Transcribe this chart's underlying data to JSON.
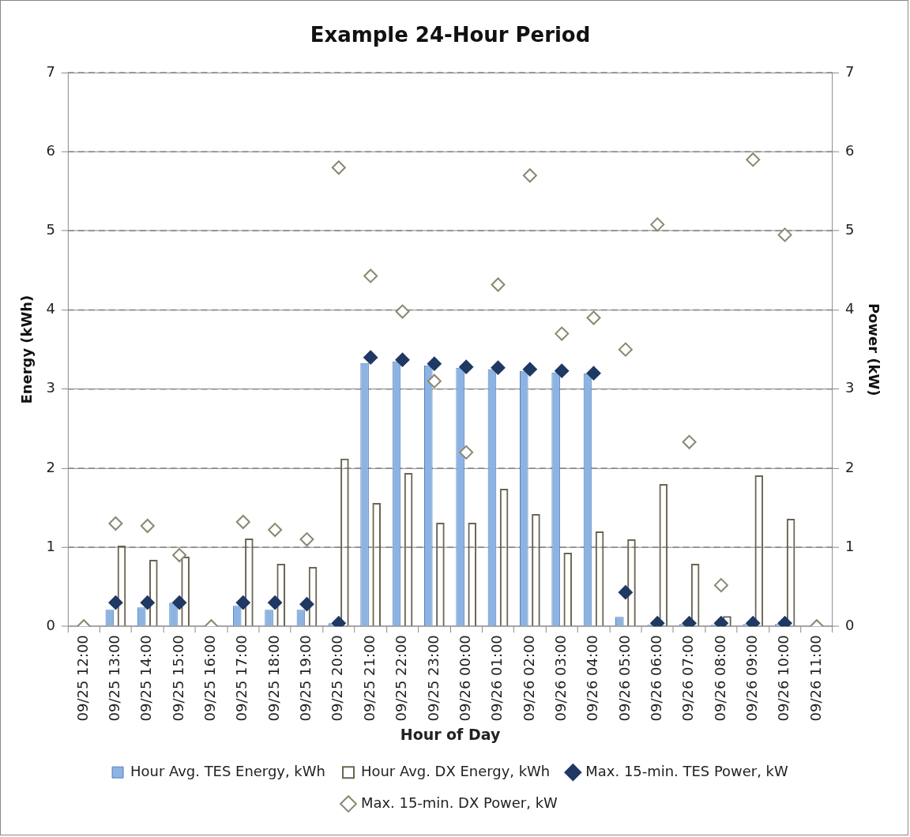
{
  "chart_data": {
    "type": "bar",
    "title": "Example 24-Hour Period",
    "xlabel": "Hour of Day",
    "ylabel": "Energy (kWh)",
    "y2label": "Power (kW)",
    "categories": [
      "09/25 12:00",
      "09/25 13:00",
      "09/25 14:00",
      "09/25 15:00",
      "09/25 16:00",
      "09/25 17:00",
      "09/25 18:00",
      "09/25 19:00",
      "09/25 20:00",
      "09/25 21:00",
      "09/25 22:00",
      "09/25 23:00",
      "09/26 00:00",
      "09/26 01:00",
      "09/26 02:00",
      "09/26 03:00",
      "09/26 04:00",
      "09/26 05:00",
      "09/26 06:00",
      "09/26 07:00",
      "09/26 08:00",
      "09/26 09:00",
      "09/26 10:00",
      "09/26 11:00"
    ],
    "series": [
      {
        "name": "Hour Avg. TES Energy, kWh",
        "color": "#8db3e2",
        "values": [
          0,
          0.21,
          0.24,
          0.3,
          0,
          0.26,
          0.21,
          0.21,
          0.04,
          3.33,
          3.35,
          3.3,
          3.27,
          3.25,
          3.23,
          3.21,
          3.2,
          0.12,
          0.02,
          0.03,
          0.02,
          0.03,
          0.03,
          0
        ]
      },
      {
        "name": "Hour Avg. DX Energy, kWh",
        "color": "#6b6450",
        "values": [
          0,
          1.02,
          0.84,
          0.88,
          0,
          1.11,
          0.79,
          0.75,
          2.12,
          1.56,
          1.94,
          1.31,
          1.31,
          1.74,
          1.42,
          0.93,
          1.2,
          1.1,
          1.8,
          0.79,
          0.13,
          1.91,
          1.36,
          0
        ]
      },
      {
        "name": "Max. 15-min. TES Power, kW",
        "type": "scatter",
        "axis": "y2",
        "color": "#1f3864",
        "values": [
          null,
          0.3,
          0.3,
          0.3,
          null,
          0.3,
          0.3,
          0.28,
          0.04,
          3.4,
          3.37,
          3.32,
          3.28,
          3.27,
          3.25,
          3.23,
          3.2,
          0.43,
          0.04,
          0.04,
          0.04,
          0.04,
          0.04,
          null
        ]
      },
      {
        "name": "Max. 15-min. DX Power, kW",
        "type": "scatter",
        "axis": "y2",
        "color": "#8b8670",
        "values": [
          0,
          1.3,
          1.27,
          0.9,
          0,
          1.32,
          1.22,
          1.1,
          5.8,
          4.43,
          3.98,
          3.1,
          2.2,
          4.32,
          5.7,
          3.7,
          3.9,
          3.5,
          5.08,
          2.33,
          0.52,
          5.9,
          4.95,
          0
        ]
      }
    ],
    "ylim": [
      0,
      7
    ],
    "yticks": [
      0,
      1,
      2,
      3,
      4,
      5,
      6,
      7
    ],
    "y2lim": [
      0,
      7
    ],
    "y2ticks": [
      0,
      1,
      2,
      3,
      4,
      5,
      6,
      7
    ],
    "grid": "y",
    "legend": "bottom",
    "marker": "diamond"
  }
}
